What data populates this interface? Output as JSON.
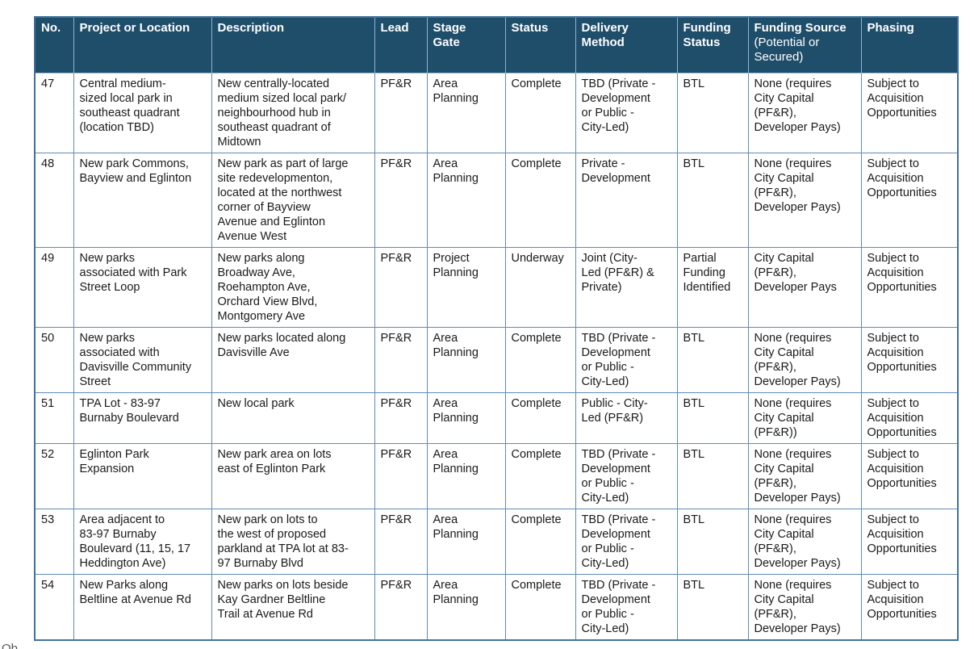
{
  "page": {
    "footer_fragment": "Ob"
  },
  "table": {
    "header_bg": "#1F4E6B",
    "header_text_color": "#FFFFFF",
    "border_color": "#5F8CB3",
    "columns": [
      {
        "key": "no",
        "label": "No.",
        "sublabel": ""
      },
      {
        "key": "project",
        "label": "Project or Location",
        "sublabel": ""
      },
      {
        "key": "description",
        "label": "Description",
        "sublabel": ""
      },
      {
        "key": "lead",
        "label": "Lead",
        "sublabel": ""
      },
      {
        "key": "stage_gate",
        "label": "Stage\nGate",
        "sublabel": ""
      },
      {
        "key": "status",
        "label": "Status",
        "sublabel": ""
      },
      {
        "key": "delivery_method",
        "label": "Delivery\nMethod",
        "sublabel": ""
      },
      {
        "key": "funding_status",
        "label": "Funding\nStatus",
        "sublabel": ""
      },
      {
        "key": "funding_source",
        "label": "Funding Source",
        "sublabel": "(Potential or\nSecured)"
      },
      {
        "key": "phasing",
        "label": "Phasing",
        "sublabel": ""
      }
    ],
    "rows": [
      {
        "no": "47",
        "project": "Central medium-\nsized local park in\nsoutheast quadrant\n(location TBD)",
        "description": "New centrally-located\nmedium sized local park/\nneighbourhood hub in\nsoutheast quadrant of\nMidtown",
        "lead": "PF&R",
        "stage_gate": "Area\nPlanning",
        "status": "Complete",
        "delivery_method": "TBD (Private -\nDevelopment\nor Public -\nCity-Led)",
        "funding_status": "BTL",
        "funding_source": "None (requires\nCity Capital\n(PF&R),\nDeveloper Pays)",
        "phasing": "Subject to\nAcquisition\nOpportunities"
      },
      {
        "no": "48",
        "project": "New park Commons,\nBayview and Eglinton",
        "description": "New park as part of large\nsite redevelopmenton,\nlocated at the northwest\ncorner of Bayview\nAvenue and Eglinton\nAvenue West",
        "lead": "PF&R",
        "stage_gate": "Area\nPlanning",
        "status": "Complete",
        "delivery_method": "Private -\nDevelopment",
        "funding_status": "BTL",
        "funding_source": "None (requires\nCity Capital\n(PF&R),\nDeveloper Pays)",
        "phasing": "Subject to\nAcquisition\nOpportunities"
      },
      {
        "no": "49",
        "project": "New parks\nassociated with Park\nStreet Loop",
        "description": "New parks along\nBroadway Ave,\nRoehampton Ave,\nOrchard View Blvd,\nMontgomery Ave",
        "lead": "PF&R",
        "stage_gate": "Project\nPlanning",
        "status": "Underway",
        "delivery_method": "Joint (City-\nLed (PF&R) &\nPrivate)",
        "funding_status": "Partial\nFunding\nIdentified",
        "funding_source": "City Capital\n(PF&R),\nDeveloper Pays",
        "phasing": "Subject to\nAcquisition\nOpportunities"
      },
      {
        "no": "50",
        "project": "New parks\nassociated with\nDavisville Community\nStreet",
        "description": "New parks located along\nDavisville Ave",
        "lead": "PF&R",
        "stage_gate": "Area\nPlanning",
        "status": "Complete",
        "delivery_method": "TBD (Private -\nDevelopment\nor Public -\nCity-Led)",
        "funding_status": "BTL",
        "funding_source": "None (requires\nCity Capital\n(PF&R),\nDeveloper Pays)",
        "phasing": "Subject to\nAcquisition\nOpportunities"
      },
      {
        "no": "51",
        "project": "TPA Lot - 83-97\nBurnaby Boulevard",
        "description": "New local park",
        "lead": "PF&R",
        "stage_gate": "Area\nPlanning",
        "status": "Complete",
        "delivery_method": "Public - City-\nLed (PF&R)",
        "funding_status": "BTL",
        "funding_source": "None (requires\nCity Capital\n(PF&R))",
        "phasing": "Subject to\nAcquisition\nOpportunities"
      },
      {
        "no": "52",
        "project": "Eglinton Park\nExpansion",
        "description": "New park area on lots\neast of Eglinton Park",
        "lead": "PF&R",
        "stage_gate": "Area\nPlanning",
        "status": "Complete",
        "delivery_method": "TBD (Private -\nDevelopment\nor Public -\nCity-Led)",
        "funding_status": "BTL",
        "funding_source": "None (requires\nCity Capital\n(PF&R),\nDeveloper Pays)",
        "phasing": "Subject to\nAcquisition\nOpportunities"
      },
      {
        "no": "53",
        "project": "Area adjacent to\n83-97 Burnaby\nBoulevard (11, 15, 17\nHeddington Ave)",
        "description": "New park on lots to\nthe west of proposed\nparkland at TPA lot at 83-\n97 Burnaby Blvd",
        "lead": "PF&R",
        "stage_gate": "Area\nPlanning",
        "status": "Complete",
        "delivery_method": "TBD (Private -\nDevelopment\nor Public -\nCity-Led)",
        "funding_status": "BTL",
        "funding_source": "None (requires\nCity Capital\n(PF&R),\nDeveloper Pays)",
        "phasing": "Subject to\nAcquisition\nOpportunities"
      },
      {
        "no": "54",
        "project": "New Parks along\nBeltline at Avenue Rd",
        "description": "New parks on lots beside\nKay Gardner Beltline\nTrail at Avenue Rd",
        "lead": "PF&R",
        "stage_gate": "Area\nPlanning",
        "status": "Complete",
        "delivery_method": "TBD (Private -\nDevelopment\nor Public -\nCity-Led)",
        "funding_status": "BTL",
        "funding_source": "None (requires\nCity Capital\n(PF&R),\nDeveloper Pays)",
        "phasing": "Subject to\nAcquisition\nOpportunities"
      }
    ]
  }
}
